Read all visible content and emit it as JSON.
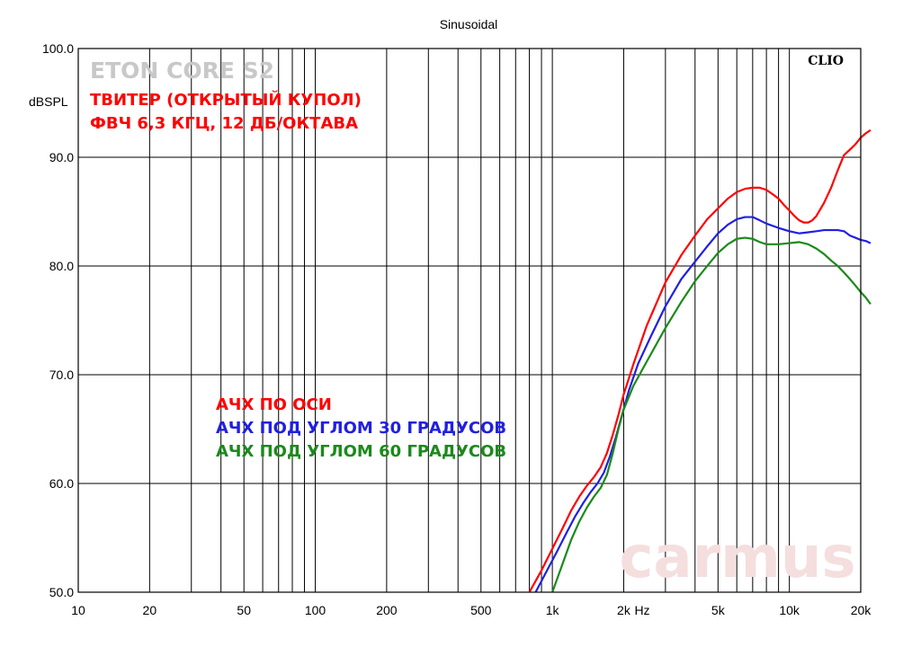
{
  "chart_data": {
    "type": "line",
    "title": "Sinusoidal",
    "xlabel": "Hz",
    "ylabel": "dBSPL",
    "xscale": "log",
    "xlim": [
      10,
      20000
    ],
    "ylim": [
      50,
      100
    ],
    "grid": true,
    "x_ticks": [
      {
        "value": 10,
        "label": "10"
      },
      {
        "value": 20,
        "label": "20"
      },
      {
        "value": 50,
        "label": "50"
      },
      {
        "value": 100,
        "label": "100"
      },
      {
        "value": 200,
        "label": "200"
      },
      {
        "value": 500,
        "label": "500"
      },
      {
        "value": 1000,
        "label": "1k"
      },
      {
        "value": 2000,
        "label": "2k"
      },
      {
        "value": 5000,
        "label": "5k"
      },
      {
        "value": 10000,
        "label": "10k"
      },
      {
        "value": 20000,
        "label": "20k"
      }
    ],
    "y_ticks": [
      {
        "value": 50,
        "label": "50.0"
      },
      {
        "value": 60,
        "label": "60.0"
      },
      {
        "value": 70,
        "label": "70.0"
      },
      {
        "value": 80,
        "label": "80.0"
      },
      {
        "value": 90,
        "label": "90.0"
      },
      {
        "value": 100,
        "label": "100.0"
      }
    ],
    "series": [
      {
        "name": "АЧХ ПО ОСИ",
        "color": "#ff0000",
        "x": [
          800,
          900,
          1000,
          1100,
          1200,
          1300,
          1400,
          1500,
          1600,
          1700,
          1800,
          1900,
          2000,
          2200,
          2500,
          3000,
          3500,
          4000,
          4500,
          5000,
          5500,
          6000,
          6500,
          7000,
          7500,
          8000,
          8500,
          9000,
          9500,
          10000,
          10500,
          11000,
          11500,
          12000,
          12500,
          13000,
          14000,
          15000,
          16000,
          17000,
          18000,
          19000,
          20000,
          21000,
          22000
        ],
        "y": [
          50,
          52,
          54,
          55.8,
          57.5,
          58.8,
          59.8,
          60.6,
          61.5,
          62.8,
          64.5,
          66.3,
          68.2,
          71,
          74.5,
          78.5,
          81,
          82.8,
          84.3,
          85.3,
          86.2,
          86.8,
          87.1,
          87.2,
          87.2,
          87,
          86.6,
          86.2,
          85.6,
          85.1,
          84.6,
          84.2,
          84,
          84,
          84.2,
          84.6,
          85.8,
          87.2,
          88.8,
          90.2,
          90.7,
          91.2,
          91.8,
          92.2,
          92.5
        ]
      },
      {
        "name": "АЧХ ПОД УГЛОМ 30 ГРАДУСОВ",
        "color": "#2020e0",
        "x": [
          850,
          950,
          1050,
          1150,
          1250,
          1350,
          1450,
          1550,
          1650,
          1750,
          1850,
          1950,
          2100,
          2300,
          2600,
          3000,
          3500,
          4000,
          4500,
          5000,
          5500,
          6000,
          6500,
          7000,
          7500,
          8000,
          9000,
          10000,
          11000,
          12000,
          13000,
          14000,
          15000,
          16000,
          17000,
          18000,
          19000,
          20000,
          21000,
          22000
        ],
        "y": [
          50,
          52,
          53.8,
          55.5,
          57,
          58.2,
          59.2,
          60,
          61,
          62.5,
          64.2,
          66,
          68.5,
          71,
          73.5,
          76.3,
          78.8,
          80.4,
          81.8,
          83,
          83.8,
          84.3,
          84.5,
          84.5,
          84.2,
          83.9,
          83.5,
          83.2,
          83,
          83.1,
          83.2,
          83.3,
          83.3,
          83.3,
          83.2,
          82.8,
          82.6,
          82.4,
          82.3,
          82.1
        ]
      },
      {
        "name": "АЧХ ПОД УГЛОМ 60 ГРАДУСОВ",
        "color": "#1a8a1a",
        "x": [
          1000,
          1100,
          1200,
          1300,
          1400,
          1500,
          1600,
          1700,
          1800,
          1900,
          2000,
          2200,
          2500,
          3000,
          3500,
          4000,
          4500,
          5000,
          5500,
          6000,
          6500,
          7000,
          7500,
          8000,
          9000,
          10000,
          11000,
          12000,
          13000,
          14000,
          15000,
          16000,
          17000,
          18000,
          19000,
          20000,
          21000,
          22000
        ],
        "y": [
          50,
          52.5,
          54.8,
          56.5,
          57.8,
          58.8,
          59.6,
          60.8,
          62.8,
          65,
          66.8,
          69,
          71.2,
          74.3,
          76.7,
          78.6,
          80,
          81.2,
          82,
          82.5,
          82.6,
          82.5,
          82.2,
          82,
          82,
          82.1,
          82.2,
          82,
          81.6,
          81.1,
          80.5,
          80,
          79.4,
          78.8,
          78.2,
          77.6,
          77.1,
          76.5
        ]
      }
    ]
  },
  "overlay": {
    "brand": "ETON CORE S2",
    "subtitle_line1": "ТВИТЕР (ОТКРЫТЫЙ КУПОЛ)",
    "subtitle_line2": "ФВЧ 6,3 КГЦ, 12 ДБ/ОКТАВА",
    "software_label": "CLIO",
    "watermark": "carmus",
    "brand_color": "#c8c8c8",
    "subtitle_color": "#ff0000",
    "watermark_color": "#f5dede"
  }
}
